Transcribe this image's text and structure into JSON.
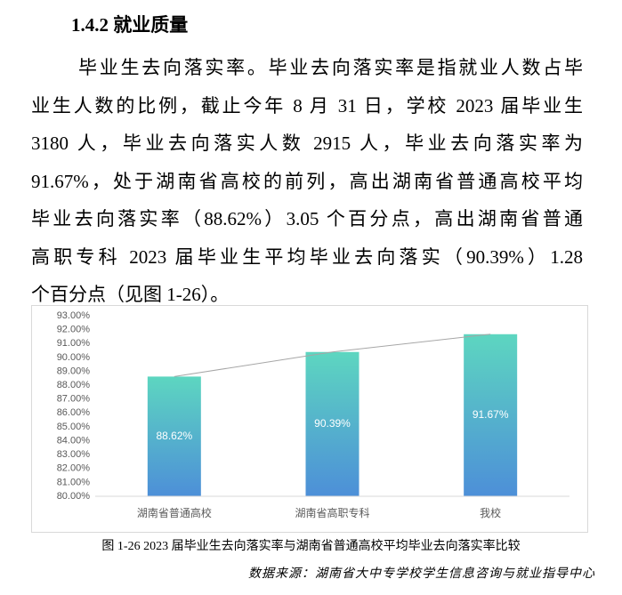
{
  "heading": "1.4.2  就业质量",
  "paragraph": [
    "毕业生去向落实率。毕业去向落实率是指就业人数占毕",
    "业生人数的比例，截止今年 8 月 31 日，学校 2023 届毕业生",
    "3180 人，毕业去向落实人数 2915 人，毕业去向落实率为",
    "91.67%，处于湖南省高校的前列，高出湖南省普通高校平均",
    "毕业去向落实率（88.62%）3.05 个百分点，高出湖南省普通",
    "高职专科 2023 届毕业生平均毕业去向落实（90.39%）1.28",
    "个百分点（见图 1-26）。"
  ],
  "chart_data": {
    "type": "bar",
    "categories": [
      "湖南省普通高校",
      "湖南省高职专科",
      "我校"
    ],
    "values": [
      88.62,
      90.39,
      91.67
    ],
    "value_labels": [
      "88.62%",
      "90.39%",
      "91.67%"
    ],
    "colors": [
      "#5dd6c0",
      "#4d8fd8"
    ],
    "connector_line": true,
    "grid": false,
    "ylim": [
      80,
      93
    ],
    "yticks": [
      {
        "value": 80,
        "label": "80.00%"
      },
      {
        "value": 81,
        "label": "81.00%"
      },
      {
        "value": 82,
        "label": "82.00%"
      },
      {
        "value": 83,
        "label": "83.00%"
      },
      {
        "value": 84,
        "label": "84.00%"
      },
      {
        "value": 85,
        "label": "85.00%"
      },
      {
        "value": 86,
        "label": "86.00%"
      },
      {
        "value": 87,
        "label": "87.00%"
      },
      {
        "value": 88,
        "label": "88.00%"
      },
      {
        "value": 89,
        "label": "89.00%"
      },
      {
        "value": 90,
        "label": "90.00%"
      },
      {
        "value": 91,
        "label": "91.00%"
      },
      {
        "value": 92,
        "label": "92.00%"
      },
      {
        "value": 93,
        "label": "93.00%"
      }
    ]
  },
  "caption": "图 1-26 2023 届毕业生去向落实率与湖南省普通高校平均毕业去向落实率比较",
  "source": "数据来源：湖南省大中专学校学生信息咨询与就业指导中心"
}
